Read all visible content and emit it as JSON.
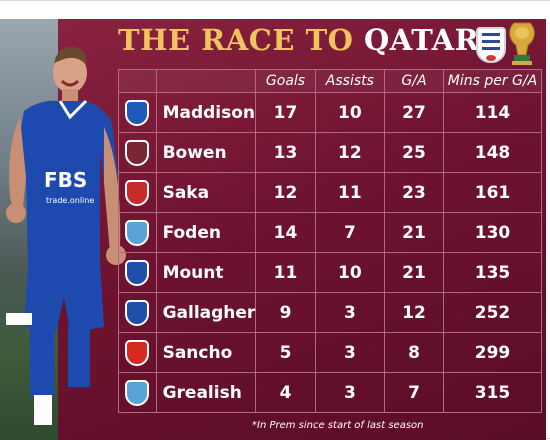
{
  "title": {
    "part1": "THE RACE TO",
    "part2": "QATAR"
  },
  "table": {
    "headers": [
      "",
      "",
      "Goals",
      "Assists",
      "G/A",
      "Mins per G/A"
    ],
    "rows": [
      {
        "club_icon": "leicester-crest-icon",
        "club_color": "#1d5bb8",
        "name": "Maddison",
        "goals": "17",
        "assists": "10",
        "ga": "27",
        "mins": "114"
      },
      {
        "club_icon": "westham-crest-icon",
        "club_color": "#7a2636",
        "name": "Bowen",
        "goals": "13",
        "assists": "12",
        "ga": "25",
        "mins": "148"
      },
      {
        "club_icon": "arsenal-crest-icon",
        "club_color": "#c62a2a",
        "name": "Saka",
        "goals": "12",
        "assists": "11",
        "ga": "23",
        "mins": "161"
      },
      {
        "club_icon": "mancity-crest-icon",
        "club_color": "#5aa3d8",
        "name": "Foden",
        "goals": "14",
        "assists": "7",
        "ga": "21",
        "mins": "130"
      },
      {
        "club_icon": "chelsea-crest-icon",
        "club_color": "#1f4fa8",
        "name": "Mount",
        "goals": "11",
        "assists": "10",
        "ga": "21",
        "mins": "135"
      },
      {
        "club_icon": "chelsea-crest-icon",
        "club_color": "#1f4fa8",
        "name": "Gallagher",
        "goals": "9",
        "assists": "3",
        "ga": "12",
        "mins": "252"
      },
      {
        "club_icon": "manutd-crest-icon",
        "club_color": "#d42b1e",
        "name": "Sancho",
        "goals": "5",
        "assists": "3",
        "ga": "8",
        "mins": "299"
      },
      {
        "club_icon": "mancity-crest-icon",
        "club_color": "#5aa3d8",
        "name": "Grealish",
        "goals": "4",
        "assists": "3",
        "ga": "7",
        "mins": "315"
      }
    ]
  },
  "footnote": "*In Prem since start of last season",
  "player_shirt": {
    "sponsor": "FBS",
    "sub": "trade.online"
  },
  "colors": {
    "panel": "#6e1330",
    "title_gold": "#f0c35e",
    "shirt_blue": "#1e4ab0"
  }
}
